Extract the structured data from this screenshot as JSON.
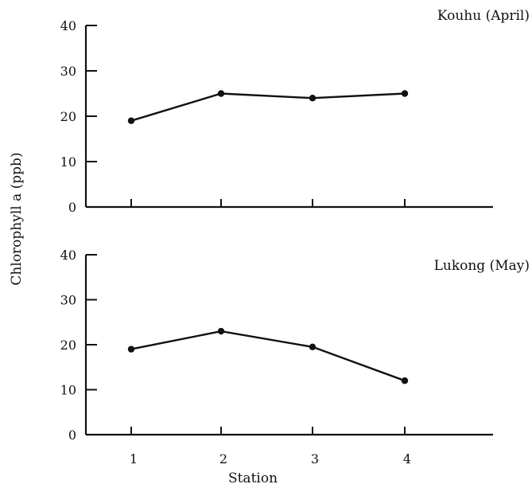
{
  "chart_data": {
    "type": "line",
    "ylabel": "Chlorophyll a (ppb)",
    "xlabel": "Station",
    "x": [
      "1",
      "2",
      "3",
      "4"
    ],
    "panels": [
      {
        "title": "Kouhu (April)",
        "ylim": [
          0,
          40
        ],
        "yticks": [
          0,
          10,
          20,
          30,
          40
        ],
        "values": [
          19,
          25,
          24,
          25
        ]
      },
      {
        "title": "Lukong (May)",
        "ylim": [
          0,
          40
        ],
        "yticks": [
          0,
          10,
          20,
          30,
          40
        ],
        "values": [
          19,
          23,
          19.5,
          12
        ]
      }
    ],
    "grid": false,
    "legend": "none"
  }
}
